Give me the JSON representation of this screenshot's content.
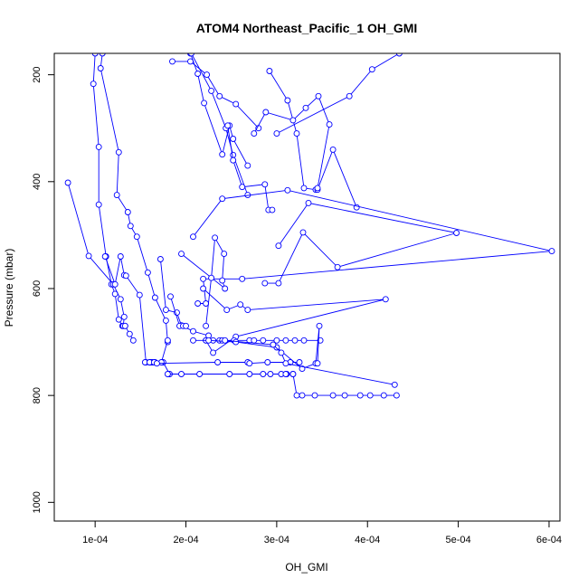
{
  "chart_data": {
    "type": "line",
    "title": "ATOM4 Northeast_Pacific_1 OH_GMI",
    "xlabel": "OH_GMI",
    "ylabel": "Pressure (mbar)",
    "xlim": [
      5.5e-05,
      0.000612
    ],
    "ylim": [
      1035,
      160
    ],
    "y_reversed": true,
    "x_ticks": [
      0.0001,
      0.0002,
      0.0003,
      0.0004,
      0.0005,
      0.0006
    ],
    "x_tick_labels": [
      "1e-04",
      "2e-04",
      "3e-04",
      "4e-04",
      "5e-04",
      "6e-04"
    ],
    "y_ticks": [
      200,
      400,
      600,
      800,
      1000
    ],
    "y_tick_labels": [
      "200",
      "400",
      "600",
      "800",
      "1000"
    ],
    "marker": "open-circle",
    "colors": {
      "series": "#0000ff",
      "axes": "#000000"
    },
    "series": [
      {
        "x": [
          0.0001,
          9.8e-05,
          0.000104,
          0.000104,
          0.000112,
          0.000118,
          0.000122,
          0.000126,
          0.00013,
          0.000133
        ],
        "y": [
          160,
          217,
          335,
          443,
          540,
          592,
          610,
          658,
          670,
          670
        ]
      },
      {
        "x": [
          0.000108,
          0.000106,
          0.000126,
          0.000124,
          0.000136,
          0.000139,
          0.000146,
          0.000158,
          0.000166,
          0.000178,
          0.00018
        ],
        "y": [
          160,
          188,
          345,
          425,
          457,
          483,
          503,
          570,
          617,
          660,
          700
        ]
      },
      {
        "x": [
          7e-05,
          9.3e-05,
          0.00012,
          0.000128,
          0.000132,
          0.000131,
          0.000133,
          0.000138,
          0.000142
        ],
        "y": [
          402,
          539,
          592,
          620,
          653,
          670,
          670,
          685,
          697
        ]
      },
      {
        "x": [
          0.000111,
          0.000122,
          0.000128,
          0.000132,
          0.000134,
          0.000149,
          0.000156,
          0.000161,
          0.000166,
          0.000175,
          0.000182
        ],
        "y": [
          540,
          592,
          540,
          575,
          576,
          612,
          738,
          738,
          738,
          738,
          760
        ]
      },
      {
        "x": [
          0.000172,
          0.000178,
          0.00019,
          0.000195,
          0.000208,
          0.000225
        ],
        "y": [
          545,
          640,
          645,
          669,
          680,
          688
        ]
      },
      {
        "x": [
          0.000183,
          0.000193,
          0.000197,
          0.0002
        ],
        "y": [
          615,
          670,
          670,
          670
        ]
      },
      {
        "x": [
          0.000155,
          0.00016,
          0.000163,
          0.000162,
          0.00016,
          0.000165,
          0.000173,
          0.00018
        ],
        "y": [
          738,
          738,
          738,
          738,
          738,
          738,
          738,
          697
        ]
      },
      {
        "x": [
          0.000185,
          0.000205,
          0.000223,
          0.000237,
          0.000255,
          0.00028
        ],
        "y": [
          175,
          175,
          200,
          240,
          255,
          300
        ]
      },
      {
        "x": [
          0.000205,
          0.000213,
          0.00022,
          0.00024,
          0.000248,
          0.000252,
          0.000268
        ],
        "y": [
          160,
          198,
          253,
          349,
          295,
          320,
          370
        ]
      },
      {
        "x": [
          0.000206,
          0.000228,
          0.000244,
          0.000252,
          0.000268
        ],
        "y": [
          160,
          230,
          300,
          350,
          425
        ]
      },
      {
        "x": [
          0.000246,
          0.000252,
          0.000262,
          0.000287,
          0.000291,
          0.000295
        ],
        "y": [
          295,
          360,
          410,
          405,
          453,
          453
        ]
      },
      {
        "x": [
          0.000292,
          0.000312,
          0.000322,
          0.00033,
          0.000343,
          0.000345,
          0.000362,
          0.000388
        ],
        "y": [
          193,
          248,
          310,
          412,
          415,
          415,
          340,
          448
        ]
      },
      {
        "x": [
          0.000275,
          0.000288,
          0.000318,
          0.000332,
          0.000346,
          0.000358,
          0.000345
        ],
        "y": [
          310,
          270,
          285,
          262,
          240,
          293,
          412
        ]
      },
      {
        "x": [
          0.000435,
          0.000405,
          0.00038,
          0.0003
        ],
        "y": [
          160,
          190,
          240,
          310
        ]
      },
      {
        "x": [
          0.000302,
          0.000335,
          0.000498,
          0.000367,
          0.000329,
          0.000302,
          0.000287
        ],
        "y": [
          520,
          440,
          496,
          560,
          495,
          590,
          590
        ]
      },
      {
        "x": [
          0.000208,
          0.00024,
          0.000312,
          0.000603,
          0.000262,
          0.000219,
          0.000222,
          0.000213
        ],
        "y": [
          503,
          432,
          416,
          530,
          582,
          582,
          628,
          628
        ]
      },
      {
        "x": [
          0.000195,
          0.000243,
          0.00024,
          0.000242,
          0.000232,
          0.000228,
          0.000222
        ],
        "y": [
          535,
          600,
          585,
          535,
          505,
          580,
          670
        ]
      },
      {
        "x": [
          0.000219,
          0.000245,
          0.00026,
          0.000268,
          0.00042,
          0.000255,
          0.00023,
          0.000222
        ],
        "y": [
          600,
          640,
          630,
          640,
          620,
          690,
          720,
          697
        ]
      },
      {
        "x": [
          0.000222,
          0.00023,
          0.000237,
          0.00024,
          0.000253,
          0.00027,
          0.000275,
          0.000285,
          0.0003,
          0.00031,
          0.00032,
          0.00033,
          0.000348
        ],
        "y": [
          697,
          697,
          697,
          697,
          697,
          697,
          697,
          697,
          697,
          697,
          697,
          697,
          697
        ]
      },
      {
        "x": [
          0.000208,
          0.000225,
          0.000255,
          0.0003,
          0.000328,
          0.000343,
          0.000347,
          0.000345
        ],
        "y": [
          697,
          697,
          700,
          710,
          750,
          740,
          670,
          740
        ]
      },
      {
        "x": [
          0.00018,
          0.000195,
          0.000215,
          0.000248,
          0.00027,
          0.000285,
          0.000293,
          0.000305,
          0.000311,
          0.000318
        ],
        "y": [
          760,
          760,
          760,
          760,
          760,
          760,
          760,
          760,
          760,
          760
        ]
      },
      {
        "x": [
          0.000168,
          0.000235,
          0.000268,
          0.00027,
          0.00029,
          0.000315,
          0.000325
        ],
        "y": [
          740,
          738,
          738,
          740,
          738,
          738,
          738
        ]
      },
      {
        "x": [
          0.00031,
          0.000318,
          0.000322,
          0.000328,
          0.000342,
          0.000362,
          0.000375,
          0.000392,
          0.000403,
          0.000418,
          0.000432
        ],
        "y": [
          760,
          760,
          800,
          800,
          800,
          800,
          800,
          800,
          800,
          800,
          800
        ]
      },
      {
        "x": [
          0.000243,
          0.000296,
          0.000305,
          0.00031,
          0.00043
        ],
        "y": [
          697,
          705,
          720,
          740,
          780
        ]
      }
    ]
  }
}
